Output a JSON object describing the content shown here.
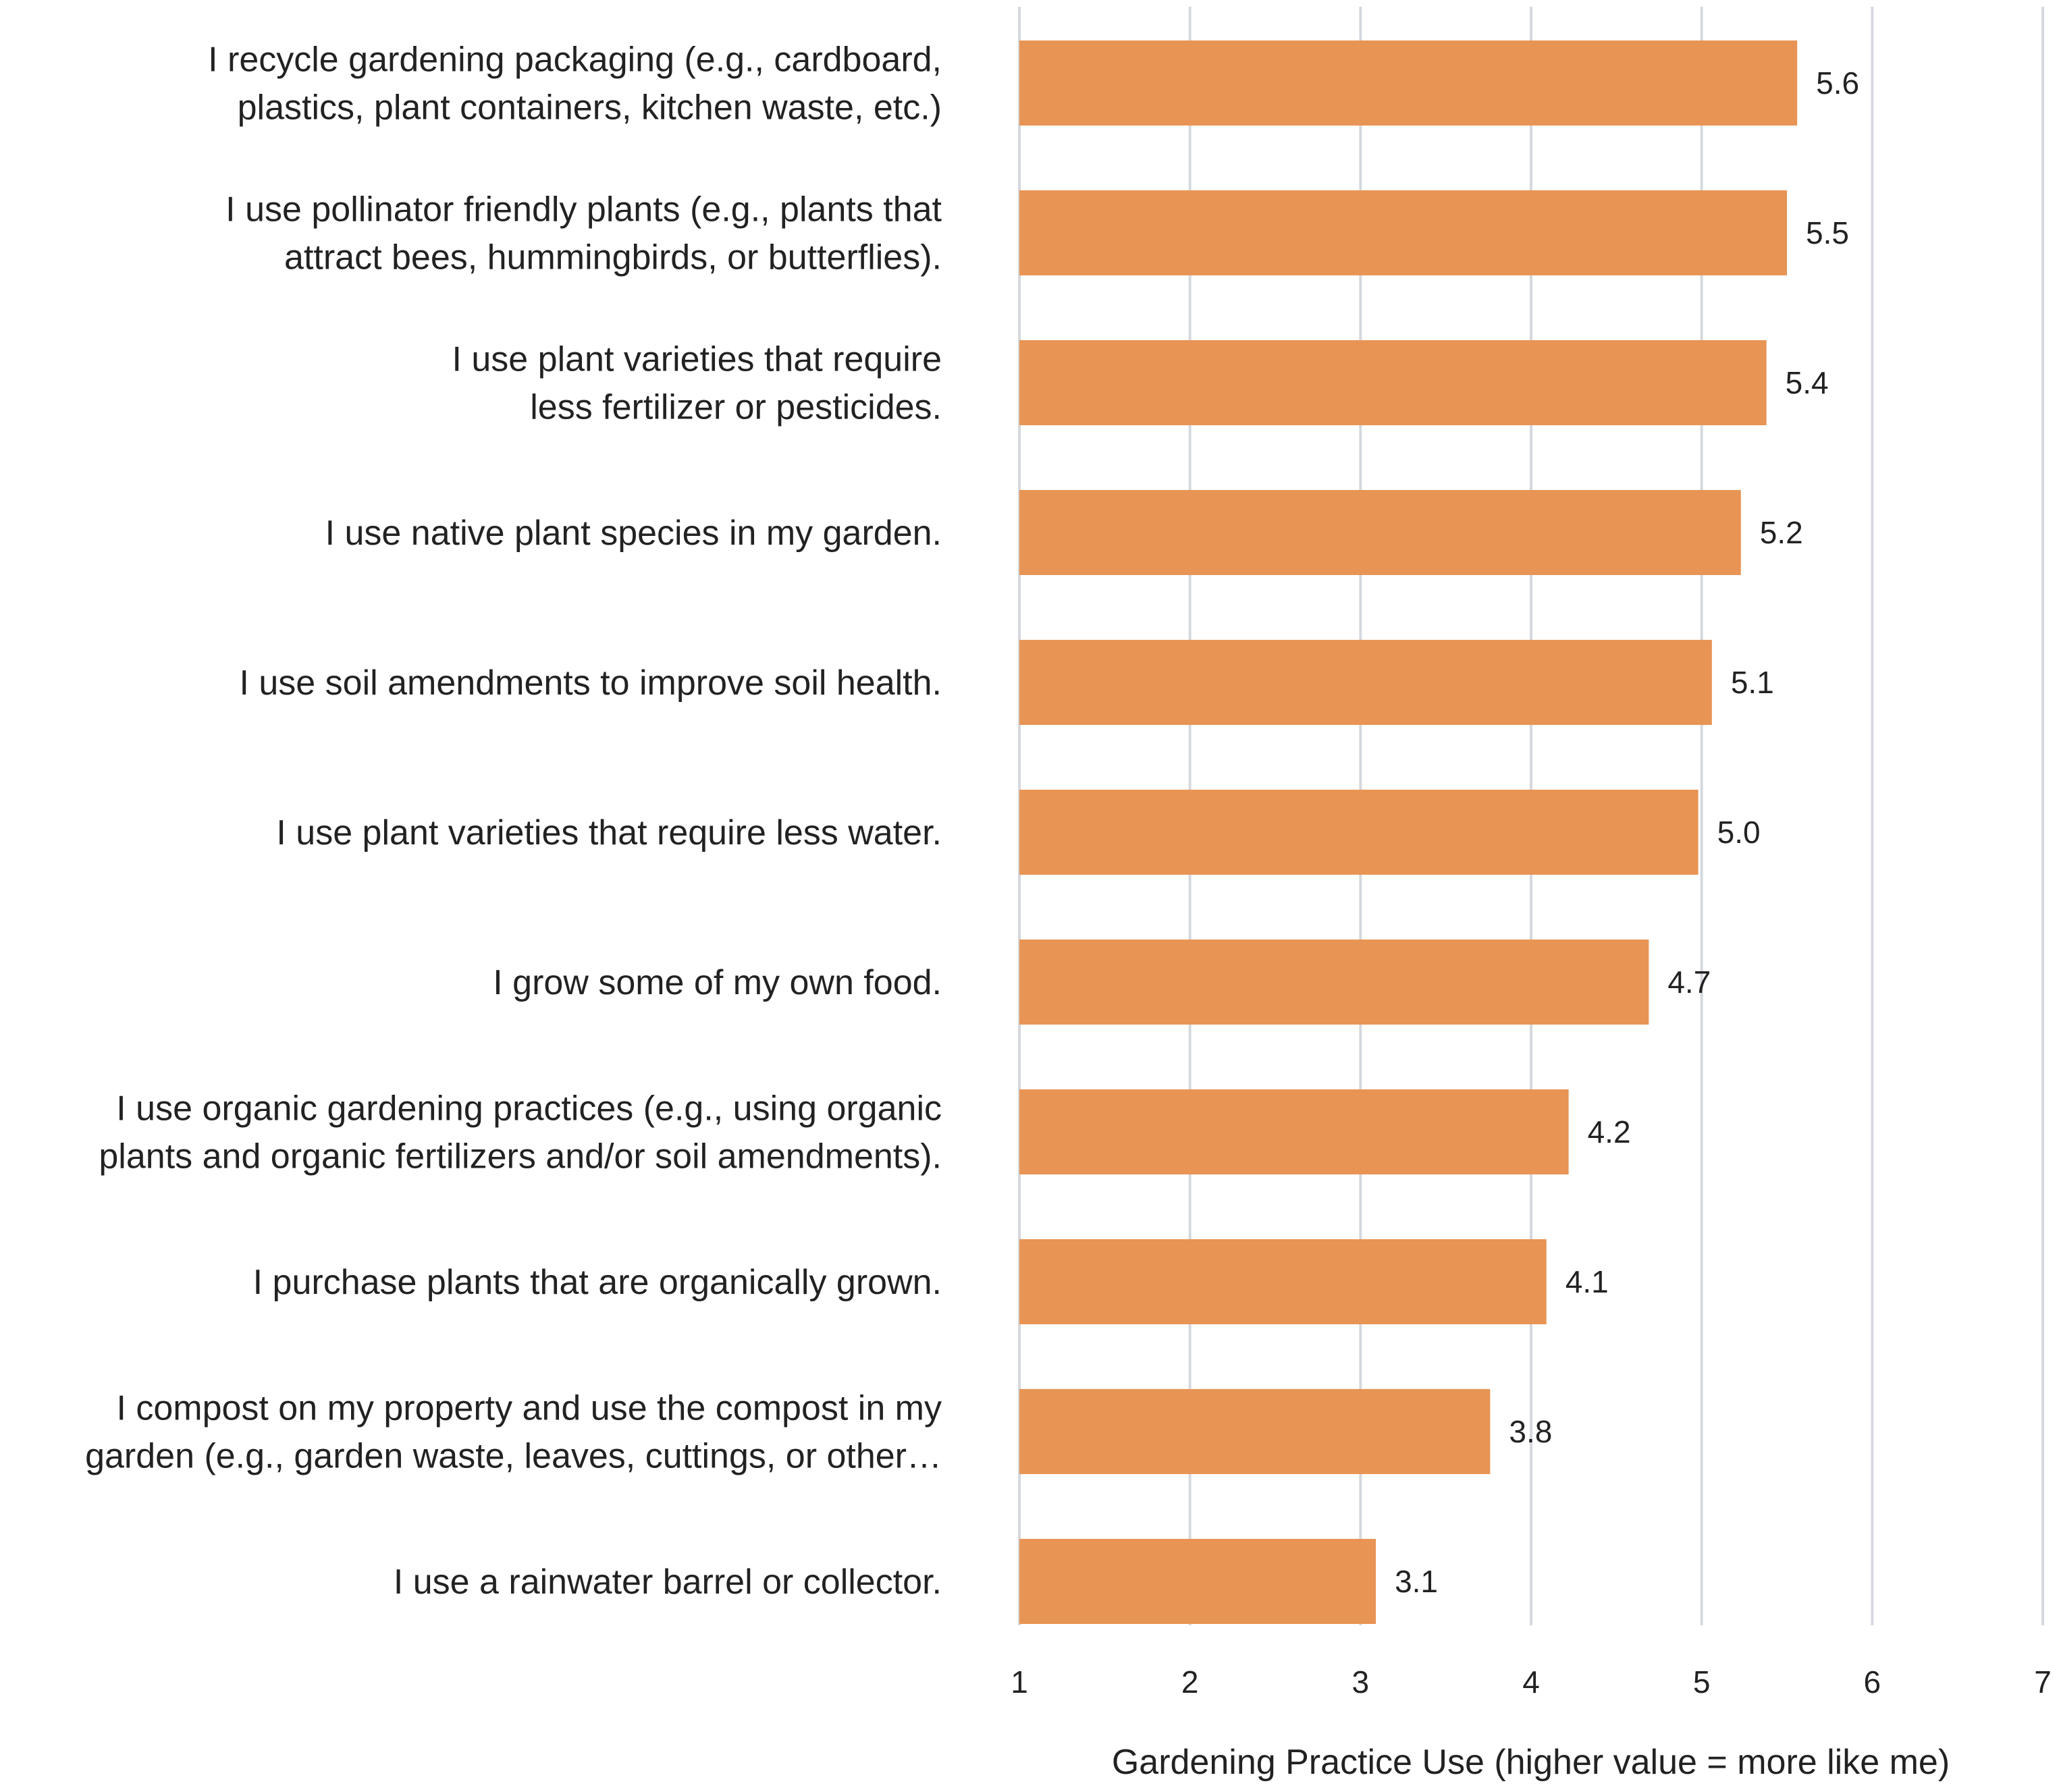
{
  "chart_data": {
    "type": "bar",
    "orientation": "horizontal",
    "xlabel": "Gardening Practice Use (higher value = more like me)",
    "xlim": [
      1,
      7
    ],
    "xticks": [
      "1",
      "2",
      "3",
      "4",
      "5",
      "6",
      "7"
    ],
    "grid": "vertical",
    "bar_color": "#E89454",
    "grid_color": "#D5D8DE",
    "categories": [
      [
        "I recycle gardening packaging (e.g., cardboard,",
        "plastics, plant containers, kitchen waste, etc.)"
      ],
      [
        "I use pollinator friendly plants (e.g., plants that",
        "attract bees, hummingbirds, or butterflies)."
      ],
      [
        "I use plant varieties that require",
        "less fertilizer or pesticides."
      ],
      [
        "I use native plant species in my garden."
      ],
      [
        "I use soil amendments to improve soil health."
      ],
      [
        "I use plant varieties that require less water."
      ],
      [
        "I grow some of my own food."
      ],
      [
        "I use organic gardening practices (e.g., using organic",
        "plants and organic fertilizers and/or soil amendments)."
      ],
      [
        "I purchase plants that are organically grown."
      ],
      [
        "I compost on my property and use the compost in my",
        "garden (e.g., garden waste, leaves, cuttings, or other…"
      ],
      [
        "I use a rainwater barrel or collector."
      ]
    ],
    "values": [
      5.56,
      5.5,
      5.38,
      5.23,
      5.06,
      4.98,
      4.69,
      4.22,
      4.09,
      3.76,
      3.09
    ],
    "value_labels": [
      "5.6",
      "5.5",
      "5.4",
      "5.2",
      "5.1",
      "5.0",
      "4.7",
      "4.2",
      "4.1",
      "3.8",
      "3.1"
    ]
  }
}
